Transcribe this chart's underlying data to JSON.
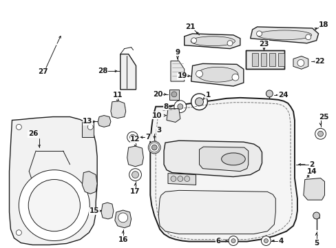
{
  "bg_color": "#ffffff",
  "line_color": "#1a1a1a",
  "fig_width": 4.89,
  "fig_height": 3.6,
  "dpi": 100,
  "label_fontsize": 7.5,
  "label_fontweight": "bold"
}
